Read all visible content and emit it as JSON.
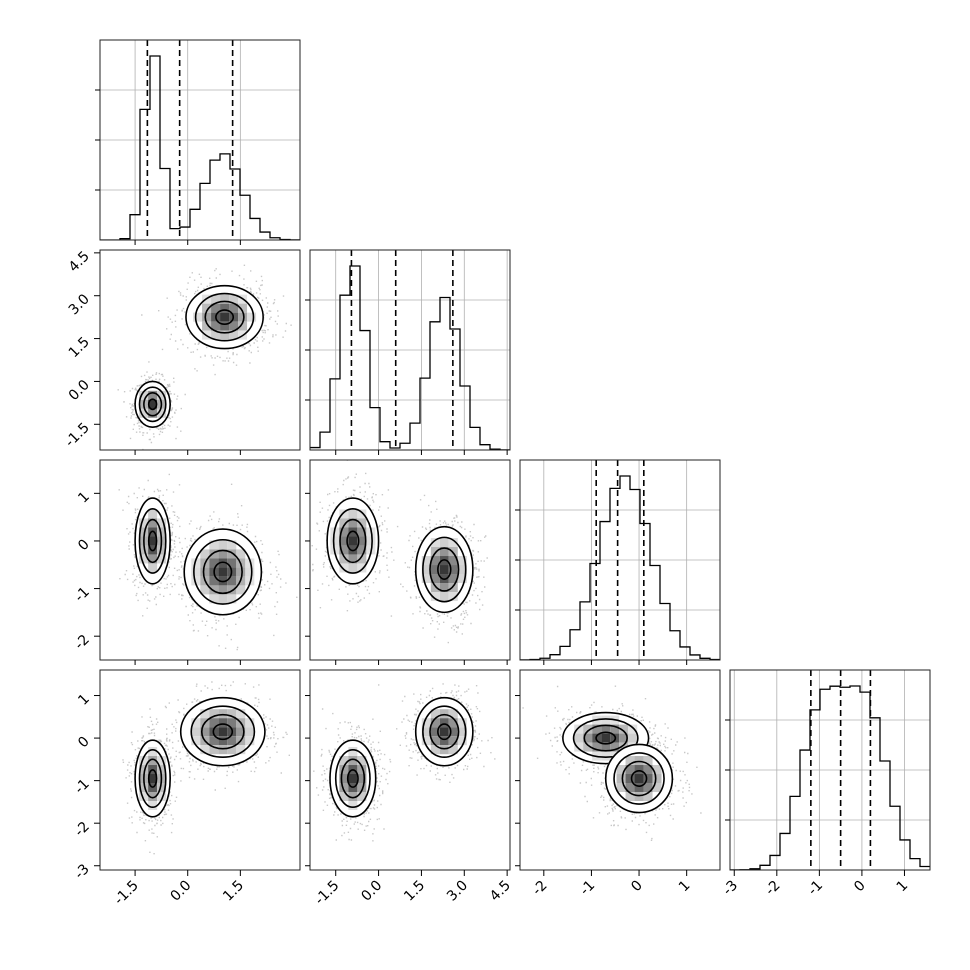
{
  "chart_data": {
    "type": "corner",
    "title": "",
    "n_params": 4,
    "grid": true,
    "ranges": [
      [
        -2.5,
        3.2
      ],
      [
        -2.4,
        4.6
      ],
      [
        -2.5,
        1.7
      ],
      [
        -3.1,
        1.6
      ]
    ],
    "ticks": [
      [
        "-1.5",
        "0.0",
        "1.5"
      ],
      [
        "-1.5",
        "0.0",
        "1.5",
        "3.0",
        "4.5"
      ],
      [
        "-2",
        "-1",
        "0",
        "1"
      ],
      [
        "-3",
        "-2",
        "-1",
        "0",
        "1"
      ]
    ],
    "tick_values": [
      [
        -1.5,
        0.0,
        1.5
      ],
      [
        -1.5,
        0.0,
        1.5,
        3.0,
        4.5
      ],
      [
        -2,
        -1,
        0,
        1
      ],
      [
        -3,
        -2,
        -1,
        0,
        1
      ]
    ],
    "quantiles": [
      [
        -1.15,
        -0.23,
        1.28
      ],
      [
        -0.95,
        0.6,
        2.6
      ],
      [
        -0.9,
        -0.45,
        0.1
      ],
      [
        -1.2,
        -0.5,
        0.2
      ]
    ],
    "modes_1d": [
      [
        {
          "mu": -1.0,
          "sigma": 0.25,
          "w": 0.5
        },
        {
          "mu": 1.0,
          "sigma": 0.55,
          "w": 0.5
        }
      ],
      [
        {
          "mu": -0.9,
          "sigma": 0.45,
          "w": 0.5
        },
        {
          "mu": 2.3,
          "sigma": 0.55,
          "w": 0.5
        }
      ],
      [
        {
          "mu": -0.3,
          "sigma": 0.55,
          "w": 1.0
        }
      ],
      [
        {
          "mu": -0.95,
          "sigma": 0.5,
          "w": 0.5
        },
        {
          "mu": 0.1,
          "sigma": 0.5,
          "w": 0.5
        }
      ]
    ],
    "clusters": {
      "1,0": [
        {
          "x": -1.0,
          "y": -0.8,
          "sx": 0.25,
          "sy": 0.4
        },
        {
          "x": 1.05,
          "y": 2.25,
          "sx": 0.55,
          "sy": 0.55
        }
      ],
      "2,0": [
        {
          "x": -1.0,
          "y": 0.0,
          "sx": 0.25,
          "sy": 0.45
        },
        {
          "x": 1.0,
          "y": -0.65,
          "sx": 0.55,
          "sy": 0.45
        }
      ],
      "2,1": [
        {
          "x": -0.9,
          "y": 0.0,
          "sx": 0.45,
          "sy": 0.45
        },
        {
          "x": 2.3,
          "y": -0.6,
          "sx": 0.5,
          "sy": 0.45
        }
      ],
      "3,0": [
        {
          "x": -1.0,
          "y": -0.95,
          "sx": 0.25,
          "sy": 0.45
        },
        {
          "x": 1.0,
          "y": 0.15,
          "sx": 0.6,
          "sy": 0.4
        }
      ],
      "3,1": [
        {
          "x": -0.9,
          "y": -0.95,
          "sx": 0.4,
          "sy": 0.45
        },
        {
          "x": 2.3,
          "y": 0.15,
          "sx": 0.5,
          "sy": 0.4
        }
      ],
      "3,2": [
        {
          "x": -0.7,
          "y": 0.0,
          "sx": 0.45,
          "sy": 0.3
        },
        {
          "x": 0.0,
          "y": -0.95,
          "sx": 0.35,
          "sy": 0.4
        }
      ]
    }
  }
}
